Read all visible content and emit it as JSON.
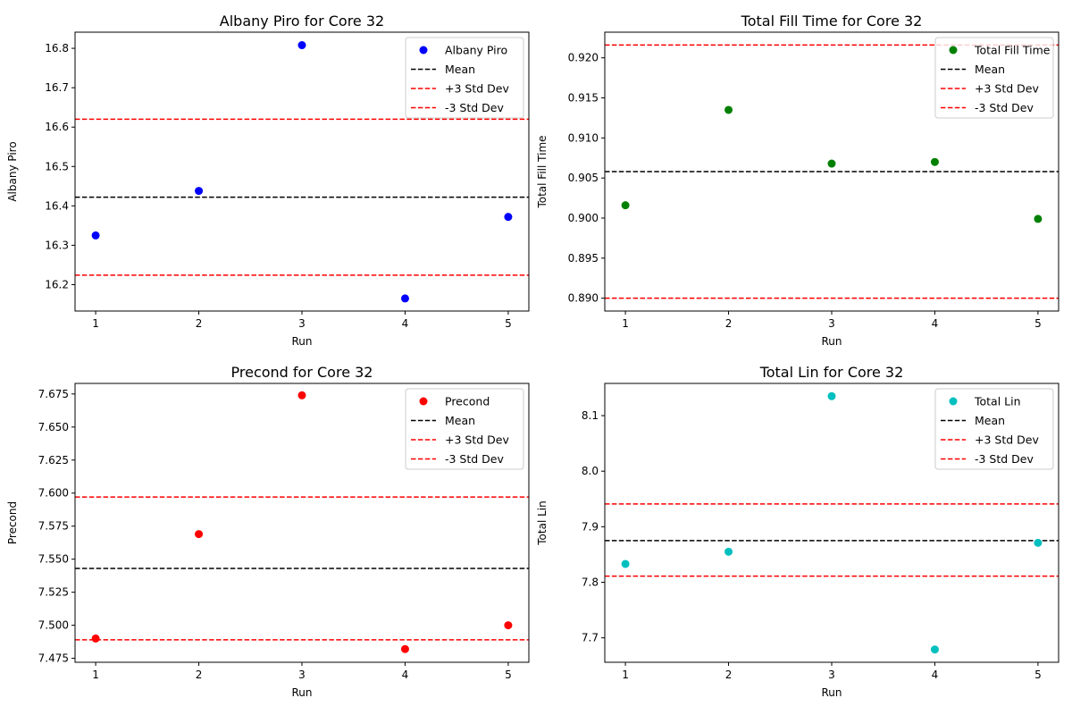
{
  "chart_data": [
    {
      "type": "scatter",
      "title": "Albany Piro for Core 32",
      "xlabel": "Run",
      "ylabel": "Albany Piro",
      "x": [
        1,
        2,
        3,
        4,
        5
      ],
      "series": [
        {
          "name": "Albany Piro",
          "values": [
            16.325,
            16.438,
            16.808,
            16.165,
            16.372
          ],
          "color": "#0000ff"
        }
      ],
      "lines": [
        {
          "name": "Mean",
          "value": 16.422,
          "color": "#000000",
          "style": "dashed"
        },
        {
          "name": "+3 Std Dev",
          "value": 16.62,
          "color": "#ff0000",
          "style": "dashed"
        },
        {
          "name": "-3 Std Dev",
          "value": 16.224,
          "color": "#ff0000",
          "style": "dashed"
        }
      ],
      "xlim": [
        0.8,
        5.2
      ],
      "ylim": [
        16.133,
        16.841
      ],
      "xticks": [
        "1",
        "2",
        "3",
        "4",
        "5"
      ],
      "yticks": [
        16.2,
        16.3,
        16.4,
        16.5,
        16.6,
        16.7,
        16.8
      ],
      "ytick_decimals": 1,
      "grid": false,
      "legend": "top-right"
    },
    {
      "type": "scatter",
      "title": "Total Fill Time for Core 32",
      "xlabel": "Run",
      "ylabel": "Total Fill Time",
      "x": [
        1,
        2,
        3,
        4,
        5
      ],
      "series": [
        {
          "name": "Total Fill Time",
          "values": [
            0.9016,
            0.9135,
            0.9068,
            0.907,
            0.8999
          ],
          "color": "#008000"
        }
      ],
      "lines": [
        {
          "name": "Mean",
          "value": 0.9058,
          "color": "#000000",
          "style": "dashed"
        },
        {
          "name": "+3 Std Dev",
          "value": 0.9216,
          "color": "#ff0000",
          "style": "dashed"
        },
        {
          "name": "-3 Std Dev",
          "value": 0.89,
          "color": "#ff0000",
          "style": "dashed"
        }
      ],
      "xlim": [
        0.8,
        5.2
      ],
      "ylim": [
        0.8884,
        0.9232
      ],
      "xticks": [
        "1",
        "2",
        "3",
        "4",
        "5"
      ],
      "yticks": [
        0.89,
        0.895,
        0.9,
        0.905,
        0.91,
        0.915,
        0.92
      ],
      "ytick_decimals": 3,
      "grid": false,
      "legend": "top-right"
    },
    {
      "type": "scatter",
      "title": "Precond for Core 32",
      "xlabel": "Run",
      "ylabel": "Precond",
      "x": [
        1,
        2,
        3,
        4,
        5
      ],
      "series": [
        {
          "name": "Precond",
          "values": [
            7.49,
            7.569,
            7.674,
            7.482,
            7.5
          ],
          "color": "#ff0000"
        }
      ],
      "lines": [
        {
          "name": "Mean",
          "value": 7.543,
          "color": "#000000",
          "style": "dashed"
        },
        {
          "name": "+3 Std Dev",
          "value": 7.597,
          "color": "#ff0000",
          "style": "dashed"
        },
        {
          "name": "-3 Std Dev",
          "value": 7.489,
          "color": "#ff0000",
          "style": "dashed"
        }
      ],
      "xlim": [
        0.8,
        5.2
      ],
      "ylim": [
        7.472,
        7.683
      ],
      "xticks": [
        "1",
        "2",
        "3",
        "4",
        "5"
      ],
      "yticks": [
        7.475,
        7.5,
        7.525,
        7.55,
        7.575,
        7.6,
        7.625,
        7.65,
        7.675
      ],
      "ytick_decimals": 3,
      "grid": false,
      "legend": "top-right"
    },
    {
      "type": "scatter",
      "title": "Total Lin for Core 32",
      "xlabel": "Run",
      "ylabel": "Total Lin",
      "x": [
        1,
        2,
        3,
        4,
        5
      ],
      "series": [
        {
          "name": "Total Lin",
          "values": [
            7.833,
            7.855,
            8.135,
            7.679,
            7.871
          ],
          "color": "#00bfbf"
        }
      ],
      "lines": [
        {
          "name": "Mean",
          "value": 7.875,
          "color": "#000000",
          "style": "dashed"
        },
        {
          "name": "+3 Std Dev",
          "value": 7.941,
          "color": "#ff0000",
          "style": "dashed"
        },
        {
          "name": "-3 Std Dev",
          "value": 7.811,
          "color": "#ff0000",
          "style": "dashed"
        }
      ],
      "xlim": [
        0.8,
        5.2
      ],
      "ylim": [
        7.656,
        8.158
      ],
      "xticks": [
        "1",
        "2",
        "3",
        "4",
        "5"
      ],
      "yticks": [
        7.7,
        7.8,
        7.9,
        8.0,
        8.1
      ],
      "ytick_decimals": 1,
      "grid": false,
      "legend": "top-right"
    }
  ]
}
